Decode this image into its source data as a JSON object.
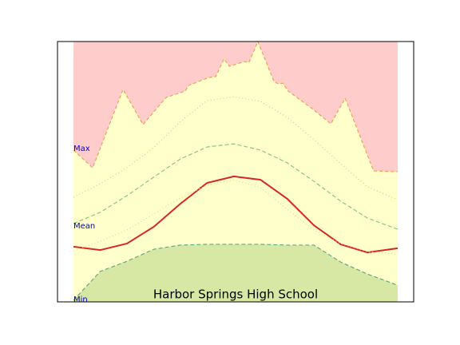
{
  "chart_data": {
    "type": "area",
    "title": "Harbor Springs High School",
    "annotations": [
      "Max",
      "Mean",
      "Min"
    ],
    "annotation_color": "#0000cc",
    "xlim": [
      -17,
      383
    ],
    "ylim": [
      0,
      100
    ],
    "x": [
      1,
      31,
      61,
      91,
      121,
      151,
      181,
      211,
      241,
      271,
      301,
      331,
      365
    ],
    "band_color": "#ffffcc",
    "series": [
      {
        "color": "#f0a050",
        "dash": "4,3",
        "fill": "#ffcccc",
        "fill_to": "top",
        "x": [
          1,
          22.5,
          56.6,
          79,
          105,
          126.5,
          130,
          153,
          160.6,
          170,
          176,
          193,
          198,
          208,
          226,
          231,
          236,
          242,
          269,
          290,
          306,
          338,
          365
        ],
        "values": [
          58.3,
          51.5,
          81.6,
          68.1,
          78.5,
          81,
          83.1,
          86.2,
          86.5,
          93.3,
          90.5,
          92.3,
          92,
          100,
          84.7,
          83.7,
          84,
          81,
          74.2,
          68.4,
          78.2,
          50.3,
          50
        ]
      },
      {
        "color": "#c8d870",
        "dash": "1,3",
        "values": [
          40.2,
          45.4,
          51.5,
          59.2,
          69.3,
          77.3,
          78.8,
          77,
          70.9,
          62.3,
          53.1,
          44.2,
          39.3
        ]
      },
      {
        "color": "#88c878",
        "dash": "5,3",
        "values": [
          30.1,
          34.4,
          40.8,
          47.9,
          54.9,
          59.5,
          60.7,
          58.3,
          53.4,
          46.3,
          38.7,
          32.2,
          27.9
        ]
      },
      {
        "color": "#d62728",
        "dash": "none",
        "width": 2,
        "values": [
          21.2,
          19.9,
          22.4,
          28.8,
          37.7,
          45.7,
          48.2,
          46.9,
          39.6,
          29.4,
          22.1,
          19,
          20.6
        ]
      },
      {
        "color": "#d8e080",
        "dash": "1,3",
        "values": [
          19.6,
          23.3,
          27.6,
          33.7,
          39.9,
          44.8,
          46.9,
          43.9,
          35.6,
          27.6,
          22.4,
          19.3,
          18.4
        ]
      },
      {
        "color": "#66a88a",
        "dash": "5,3",
        "fill": "#d6e8a3",
        "fill_to": "bottom",
        "values": [
          0.6,
          11.7,
          15.6,
          20.2,
          21.8,
          22.1,
          22.1,
          22.1,
          21.8,
          21.8,
          15.3,
          10.7,
          6.4
        ]
      }
    ]
  }
}
